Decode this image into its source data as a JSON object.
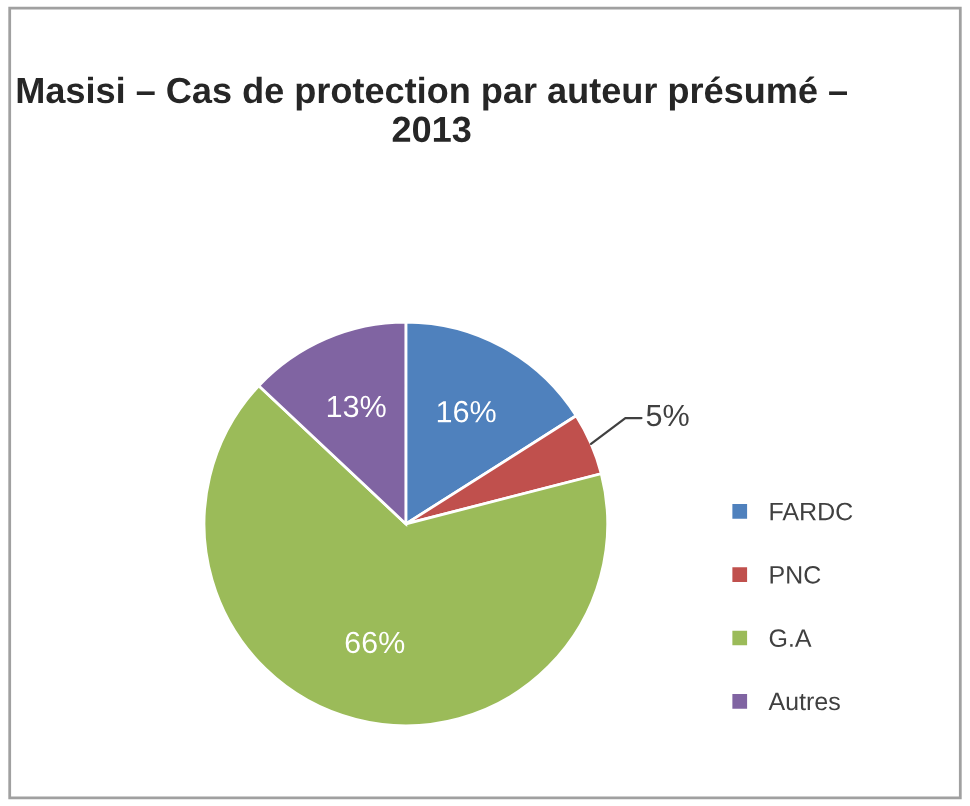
{
  "chart_data": {
    "type": "pie",
    "title": "Masisi – Cas de protection par auteur présumé – 2013",
    "categories": [
      "FARDC",
      "PNC",
      "G.A",
      "Autres"
    ],
    "values": [
      16,
      5,
      66,
      13
    ],
    "colors": [
      "#4f81bd",
      "#c0504d",
      "#9bbb59",
      "#8064a2"
    ],
    "value_labels": [
      "16%",
      "5%",
      "66%",
      "13%"
    ],
    "legend": "right"
  }
}
